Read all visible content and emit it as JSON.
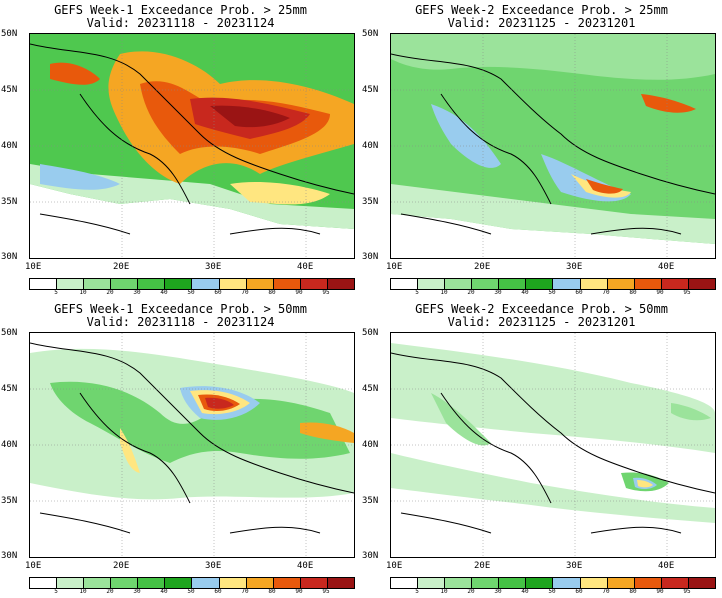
{
  "colorbar": {
    "ticks": [
      "5",
      "10",
      "20",
      "30",
      "40",
      "50",
      "60",
      "70",
      "80",
      "90",
      "95"
    ],
    "colors": [
      "#ffffff",
      "#c9f0c9",
      "#9be39b",
      "#6fd56f",
      "#45c245",
      "#1ea51e",
      "#99ccee",
      "#ffe680",
      "#f5a623",
      "#e8590c",
      "#c8281e",
      "#9a1414"
    ]
  },
  "lat_labels": [
    "50N",
    "45N",
    "40N",
    "35N",
    "30N"
  ],
  "lon_labels": [
    "10E",
    "20E",
    "30E",
    "40E"
  ],
  "panels": [
    {
      "title": "GEFS Week-1 Exceedance Prob. > 25mm",
      "valid": "Valid: 20231118 - 20231124"
    },
    {
      "title": "GEFS Week-2 Exceedance Prob. > 25mm",
      "valid": "Valid: 20231125 - 20231201"
    },
    {
      "title": "GEFS Week-1 Exceedance Prob. > 50mm",
      "valid": "Valid: 20231118 - 20231124"
    },
    {
      "title": "GEFS Week-2 Exceedance Prob. > 50mm",
      "valid": "Valid: 20231125 - 20231201"
    }
  ]
}
